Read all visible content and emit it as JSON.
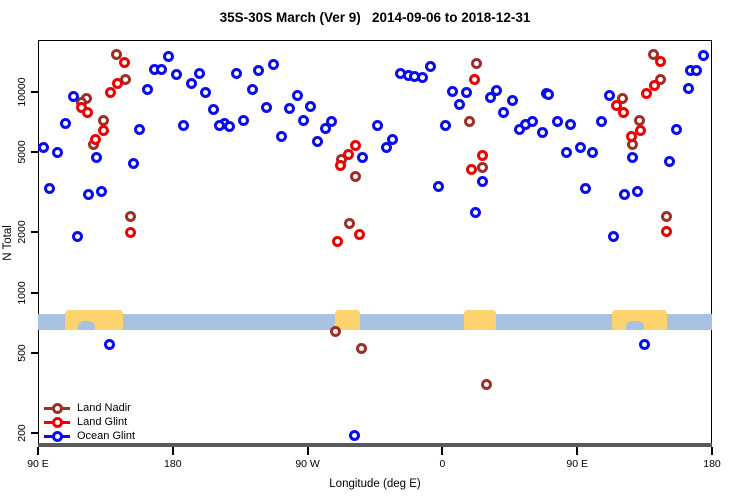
{
  "title": "35S-30S March (Ver 9)   2014-09-06 to 2018-12-31",
  "axes": {
    "x": {
      "label": "Longitude (deg E)",
      "ticks": [
        {
          "pos": 0,
          "label": "90 E"
        },
        {
          "pos": 90,
          "label": "180"
        },
        {
          "pos": 180,
          "label": "90 W"
        },
        {
          "pos": 270,
          "label": "0"
        },
        {
          "pos": 360,
          "label": "90 E"
        },
        {
          "pos": 450,
          "label": "180"
        }
      ]
    },
    "y": {
      "label": "N Total",
      "ticks": [
        200,
        500,
        1000,
        2000,
        5000,
        10000
      ],
      "scale": "log",
      "range": [
        185,
        18000
      ]
    }
  },
  "legend": {
    "items": [
      {
        "label": "Land Nadir",
        "color": "#9e2f28"
      },
      {
        "label": "Land Glint",
        "color": "#ee0000"
      },
      {
        "label": "Ocean Glint",
        "color": "#0b0bef"
      }
    ]
  },
  "map_strip": {
    "ocean_color": "#a9c2e2",
    "land_color": "#fcd36d",
    "land_segments_deg": [
      [
        18,
        56.7
      ],
      [
        198,
        214.7
      ],
      [
        284.7,
        306
      ],
      [
        383.3,
        420
      ]
    ],
    "ocean_notches_deg": [
      [
        26.7,
        38
      ],
      [
        392.7,
        404.7
      ]
    ]
  },
  "chart_data": {
    "type": "scatter",
    "x_axis_note": "degrees eastward along axis starting at 90E (0-450)",
    "series": [
      {
        "name": "Land Nadir",
        "color": "#9e2f28",
        "points": [
          [
            52.7,
            15300
          ],
          [
            58.2,
            11500
          ],
          [
            32.5,
            9300
          ],
          [
            28.9,
            8900
          ],
          [
            43.5,
            7200
          ],
          [
            37.3,
            5500
          ],
          [
            61.8,
            2400
          ],
          [
            207.8,
            2200
          ],
          [
            202.5,
            4600
          ],
          [
            211.8,
            3800
          ],
          [
            198.7,
            640
          ],
          [
            216,
            530
          ],
          [
            292.5,
            13800
          ],
          [
            288,
            7100
          ],
          [
            296.9,
            4200
          ],
          [
            299.3,
            350
          ],
          [
            410.9,
            15300
          ],
          [
            415.8,
            11500
          ],
          [
            390,
            9300
          ],
          [
            401.3,
            7200
          ],
          [
            397.1,
            5500
          ],
          [
            419.3,
            2400
          ]
        ]
      },
      {
        "name": "Land Glint",
        "color": "#ee0000",
        "points": [
          [
            57.8,
            14000
          ],
          [
            53.3,
            11000
          ],
          [
            48.5,
            9900
          ],
          [
            28.9,
            8400
          ],
          [
            32.9,
            7900
          ],
          [
            43.5,
            6400
          ],
          [
            38.2,
            5800
          ],
          [
            61.8,
            2000
          ],
          [
            211.8,
            5400
          ],
          [
            207.3,
            4900
          ],
          [
            202,
            4300
          ],
          [
            214.9,
            1960
          ],
          [
            199.8,
            1800
          ],
          [
            291.5,
            11600
          ],
          [
            296.5,
            4800
          ],
          [
            289.3,
            4100
          ],
          [
            415.3,
            14200
          ],
          [
            411.3,
            10800
          ],
          [
            406.5,
            9800
          ],
          [
            386,
            8600
          ],
          [
            390.9,
            7900
          ],
          [
            402,
            6400
          ],
          [
            396.2,
            6000
          ],
          [
            419.8,
            2030
          ]
        ]
      },
      {
        "name": "Ocean Glint",
        "color": "#0b0bef",
        "points": [
          [
            23.5,
            9500
          ],
          [
            18.2,
            7000
          ],
          [
            4,
            5300
          ],
          [
            12.9,
            5000
          ],
          [
            39.1,
            4700
          ],
          [
            63.5,
            4400
          ],
          [
            8,
            3300
          ],
          [
            42.7,
            3200
          ],
          [
            33.8,
            3100
          ],
          [
            26.2,
            1900
          ],
          [
            87.1,
            15100
          ],
          [
            77.8,
            13000
          ],
          [
            82.7,
            13000
          ],
          [
            92.5,
            12200
          ],
          [
            107.5,
            12400
          ],
          [
            102.7,
            11000
          ],
          [
            73.3,
            10300
          ],
          [
            112,
            9900
          ],
          [
            68,
            6500
          ],
          [
            96.9,
            6800
          ],
          [
            157.3,
            13700
          ],
          [
            146.9,
            12800
          ],
          [
            132.7,
            12300
          ],
          [
            142.9,
            10300
          ],
          [
            173.1,
            9600
          ],
          [
            117.5,
            8200
          ],
          [
            152.7,
            8400
          ],
          [
            167.8,
            8300
          ],
          [
            182,
            8500
          ],
          [
            124.2,
            7000
          ],
          [
            121.1,
            6800
          ],
          [
            127.8,
            6700
          ],
          [
            137.5,
            7200
          ],
          [
            177.1,
            7200
          ],
          [
            195.8,
            7100
          ],
          [
            192.2,
            6600
          ],
          [
            162.5,
            6000
          ],
          [
            186.9,
            5700
          ],
          [
            216.7,
            4700
          ],
          [
            226.5,
            6800
          ],
          [
            242.2,
            12400
          ],
          [
            247.1,
            12100
          ],
          [
            251.5,
            11900
          ],
          [
            256.5,
            11800
          ],
          [
            261.8,
            13400
          ],
          [
            276.9,
            10100
          ],
          [
            285.8,
            10000
          ],
          [
            281.3,
            8700
          ],
          [
            301.8,
            9400
          ],
          [
            306.2,
            10200
          ],
          [
            316.5,
            9100
          ],
          [
            311.1,
            7900
          ],
          [
            272,
            6800
          ],
          [
            236.5,
            5800
          ],
          [
            232.9,
            5300
          ],
          [
            321.3,
            6500
          ],
          [
            325.3,
            6900
          ],
          [
            330.2,
            7100
          ],
          [
            336.7,
            6300
          ],
          [
            339.5,
            9800
          ],
          [
            296.9,
            3600
          ],
          [
            267.1,
            3400
          ],
          [
            292,
            2500
          ],
          [
            341.1,
            9700
          ],
          [
            346.9,
            7100
          ],
          [
            355.8,
            6900
          ],
          [
            376.2,
            7100
          ],
          [
            381.5,
            9600
          ],
          [
            362.5,
            5300
          ],
          [
            352.7,
            5000
          ],
          [
            370.5,
            5000
          ],
          [
            396.7,
            4700
          ],
          [
            426,
            6500
          ],
          [
            421.5,
            4500
          ],
          [
            365.5,
            3300
          ],
          [
            391.3,
            3100
          ],
          [
            400.2,
            3200
          ],
          [
            384.2,
            1900
          ],
          [
            434,
            10400
          ],
          [
            435.8,
            12800
          ],
          [
            439.8,
            12800
          ],
          [
            444.2,
            15200
          ],
          [
            47.7,
            550
          ],
          [
            211.5,
            195
          ],
          [
            405,
            550
          ]
        ]
      }
    ],
    "title": "35S-30S March (Ver 9)   2014-09-06 to 2018-12-31",
    "xlabel": "Longitude (deg E)",
    "ylabel": "N Total",
    "legend_position": "bottom-left",
    "grid": false
  }
}
